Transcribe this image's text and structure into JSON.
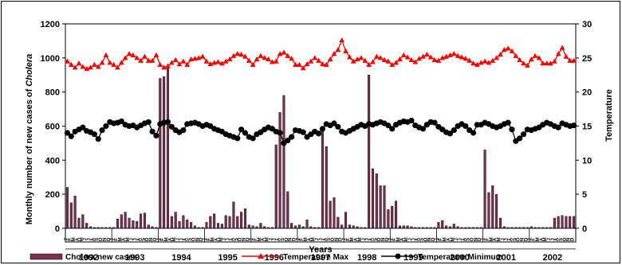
{
  "chart_data": {
    "type": "bar",
    "y_left_label": "Monthly number of new cases of Cholera",
    "y_left_label_parts": [
      "Monthly number of new cases of ",
      "Cholera"
    ],
    "y_right_label": "Temperature",
    "x_label": "Years",
    "y_left_ticks": [
      "0",
      "200",
      "400",
      "600",
      "800",
      "1000",
      "1200"
    ],
    "y_right_ticks": [
      "0",
      "5",
      "10",
      "15",
      "20",
      "25",
      "30"
    ],
    "y_left_range": [
      -80,
      1200
    ],
    "y_right_range": [
      -2,
      30
    ],
    "years": [
      "1992",
      "1993",
      "1994",
      "1995",
      "1996",
      "1997",
      "1998",
      "1999",
      "2000",
      "2001",
      "2002"
    ],
    "month_letters": [
      "J",
      "F",
      "M",
      "A",
      "M",
      "J",
      "J",
      "A",
      "S",
      "O",
      "N",
      "D"
    ],
    "series": [
      {
        "name": "Cholera new cases",
        "kind": "bar",
        "axis": "left",
        "color": "#7b2f4e",
        "values": [
          240,
          150,
          190,
          60,
          80,
          30,
          10,
          5,
          5,
          5,
          5,
          5,
          5,
          55,
          80,
          95,
          60,
          45,
          40,
          85,
          90,
          20,
          10,
          5,
          880,
          890,
          940,
          70,
          95,
          40,
          75,
          50,
          35,
          15,
          5,
          5,
          35,
          70,
          85,
          30,
          25,
          75,
          70,
          155,
          70,
          95,
          115,
          20,
          15,
          10,
          30,
          10,
          5,
          5,
          490,
          680,
          780,
          215,
          30,
          15,
          20,
          10,
          50,
          10,
          5,
          5,
          570,
          480,
          160,
          180,
          65,
          20,
          95,
          20,
          15,
          10,
          5,
          5,
          900,
          350,
          320,
          250,
          250,
          110,
          130,
          160,
          15,
          15,
          15,
          10,
          5,
          5,
          5,
          5,
          5,
          5,
          35,
          45,
          15,
          10,
          25,
          10,
          5,
          5,
          5,
          5,
          5,
          5,
          460,
          210,
          250,
          200,
          60,
          10,
          5,
          5,
          5,
          5,
          5,
          5,
          10,
          5,
          5,
          5,
          5,
          5,
          60,
          70,
          75,
          70,
          70,
          70
        ]
      },
      {
        "name": "Temperature Max",
        "kind": "line",
        "axis": "right",
        "color": "#ff0000",
        "values": [
          24.5,
          24.0,
          23.6,
          24.2,
          23.7,
          23.4,
          23.6,
          24.0,
          23.7,
          24.3,
          25.4,
          24.3,
          24.0,
          23.6,
          24.3,
          25.0,
          25.6,
          25.4,
          25.0,
          24.6,
          25.2,
          24.6,
          24.6,
          25.4,
          24.0,
          23.6,
          23.8,
          24.3,
          24.7,
          24.1,
          24.5,
          24.0,
          24.8,
          24.9,
          25.0,
          25.2,
          24.5,
          24.1,
          24.3,
          24.4,
          24.2,
          24.5,
          24.8,
          25.3,
          25.6,
          25.5,
          25.2,
          24.6,
          24.0,
          24.8,
          25.3,
          25.0,
          24.8,
          24.4,
          24.5,
          25.6,
          25.8,
          25.3,
          24.9,
          24.0,
          24.0,
          23.5,
          24.1,
          24.5,
          25.0,
          24.6,
          24.1,
          24.0,
          24.8,
          25.6,
          26.2,
          27.6,
          26.0,
          25.1,
          24.5,
          24.8,
          25.0,
          24.6,
          24.0,
          24.4,
          25.2,
          25.0,
          24.7,
          24.5,
          24.0,
          24.3,
          24.8,
          25.4,
          25.1,
          24.7,
          24.4,
          24.9,
          25.2,
          25.5,
          25.1,
          24.7,
          24.6,
          25.0,
          25.2,
          25.4,
          25.6,
          25.3,
          25.1,
          24.9,
          24.6,
          24.2,
          24.0,
          24.3,
          24.5,
          24.3,
          24.6,
          25.0,
          25.5,
          26.2,
          26.4,
          26.0,
          25.3,
          24.7,
          24.2,
          23.9,
          24.8,
          25.3,
          25.0,
          24.2,
          24.2,
          24.2,
          24.5,
          25.6,
          26.5,
          25.2,
          24.6,
          24.6
        ]
      },
      {
        "name": "Temperature Minimum",
        "kind": "line",
        "axis": "right",
        "color": "#000000",
        "values": [
          14.0,
          13.5,
          14.2,
          14.5,
          14.8,
          14.3,
          14.1,
          13.8,
          13.1,
          14.4,
          15.0,
          15.6,
          15.4,
          15.5,
          15.7,
          15.2,
          15.0,
          15.1,
          14.8,
          15.1,
          15.4,
          15.6,
          14.2,
          13.6,
          15.3,
          15.5,
          15.6,
          14.9,
          14.4,
          14.1,
          14.4,
          15.3,
          15.4,
          15.5,
          15.3,
          15.0,
          15.2,
          15.0,
          14.6,
          14.4,
          14.2,
          13.8,
          13.6,
          13.4,
          13.2,
          14.5,
          14.0,
          13.4,
          13.2,
          13.8,
          14.1,
          14.5,
          14.8,
          14.6,
          14.2,
          14.0,
          12.5,
          12.9,
          13.4,
          14.4,
          14.3,
          14.1,
          13.4,
          13.8,
          14.2,
          13.9,
          14.6,
          15.3,
          15.1,
          15.4,
          14.9,
          14.2,
          14.0,
          14.3,
          14.6,
          14.9,
          15.2,
          15.0,
          15.3,
          15.2,
          15.4,
          15.6,
          15.4,
          15.1,
          14.6,
          15.2,
          15.5,
          15.7,
          15.6,
          15.8,
          15.1,
          14.8,
          14.6,
          15.2,
          15.6,
          15.5,
          14.9,
          14.5,
          14.1,
          13.9,
          14.4,
          15.0,
          15.3,
          15.0,
          14.4,
          14.0,
          15.2,
          15.2,
          15.5,
          15.3,
          15.0,
          14.8,
          15.0,
          15.3,
          15.5,
          14.5,
          12.8,
          13.2,
          13.8,
          14.5,
          14.4,
          14.6,
          14.8,
          15.2,
          15.5,
          15.3,
          15.0,
          14.8,
          15.4,
          15.2,
          15.0,
          15.1
        ]
      }
    ],
    "legend": {
      "position": "bottom",
      "entries": [
        "Cholera new cases",
        "Temperature Max",
        "Temperature Minimum"
      ]
    },
    "grid": false
  }
}
